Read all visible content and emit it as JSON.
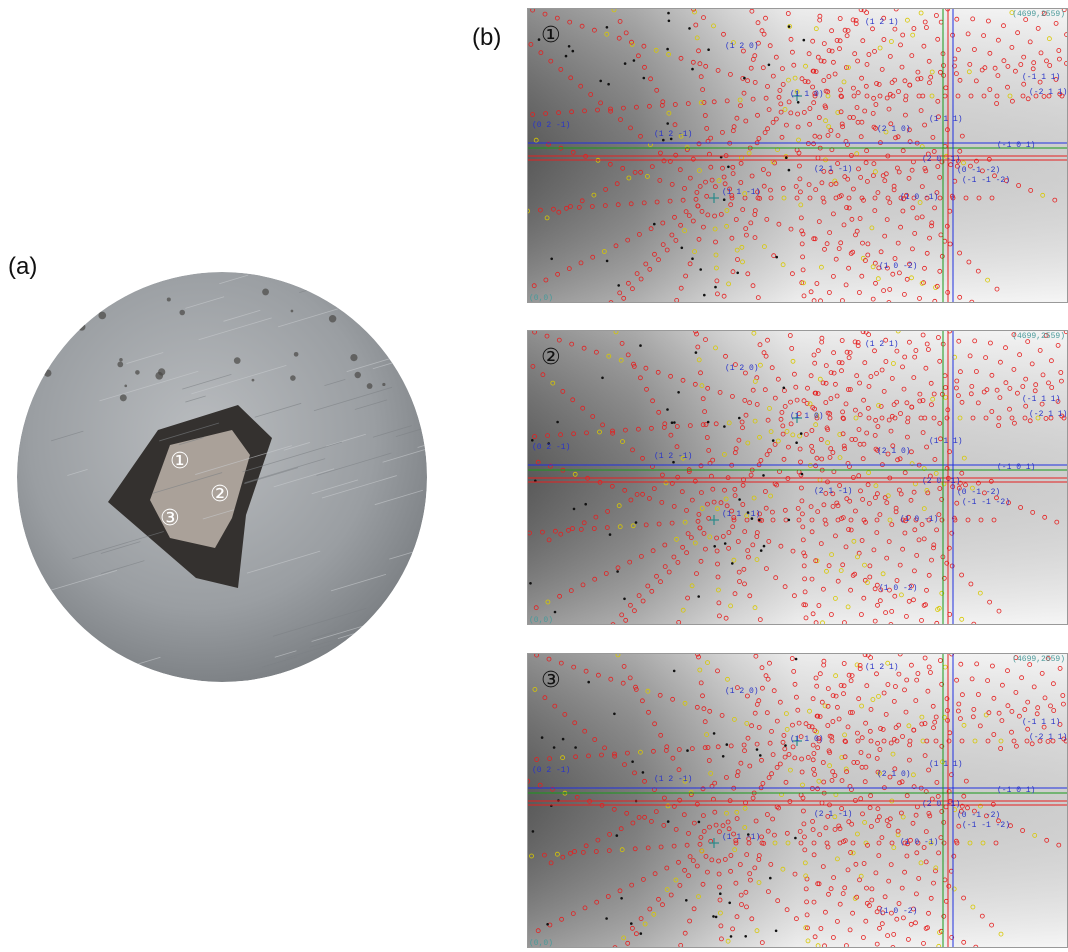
{
  "figure": {
    "panel_a_label": "(a)",
    "panel_b_label": "(b)",
    "spots": [
      "①",
      "②",
      "③"
    ]
  },
  "laue": {
    "corner_top": "(4699,2559)",
    "corner_bottom": "(0,0)",
    "indices": [
      "(1 2 0)",
      "(1 2 1)",
      "(1 1 0)",
      "(0 2 -1)",
      "(1 2 -1)",
      "(1 1 -1)",
      "(2 1 -1)",
      "(1 1 1)",
      "(2 1 0)",
      "(-1 1 1)",
      "(-2 1 1)",
      "(-1 0 1)",
      "(2 0 -1)",
      "(0 -1 -2)",
      "(-1 -1 -2)",
      "(1 0 -1)",
      "(1 0 -2)"
    ]
  }
}
